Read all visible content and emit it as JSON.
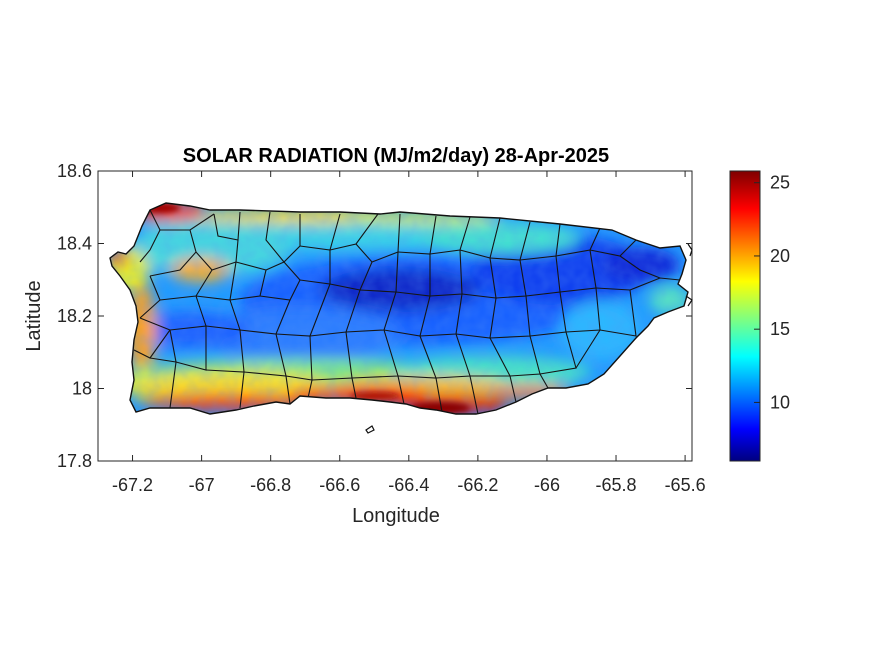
{
  "figure": {
    "title": "SOLAR RADIATION (MJ/m2/day) 28-Apr-2025",
    "xlabel": "Longitude",
    "ylabel": "Latitude"
  },
  "chart_data": {
    "type": "heatmap",
    "title": "SOLAR RADIATION (MJ/m2/day) 28-Apr-2025",
    "xlabel": "Longitude",
    "ylabel": "Latitude",
    "xlim": [
      -67.3,
      -65.58
    ],
    "ylim": [
      17.8,
      18.6
    ],
    "x_ticks": [
      -67.2,
      -67,
      -66.8,
      -66.6,
      -66.4,
      -66.2,
      -66,
      -65.8,
      -65.6
    ],
    "x_tick_labels": [
      "-67.2",
      "-67",
      "-66.8",
      "-66.6",
      "-66.4",
      "-66.2",
      "-66",
      "-65.8",
      "-65.6"
    ],
    "y_ticks": [
      17.8,
      18,
      18.2,
      18.4,
      18.6
    ],
    "y_tick_labels": [
      "17.8",
      "18",
      "18.2",
      "18.4",
      "18.6"
    ],
    "colorbar": {
      "range": [
        6,
        25.8
      ],
      "ticks": [
        10,
        15,
        20,
        25
      ],
      "tick_labels": [
        "10",
        "15",
        "20",
        "25"
      ],
      "colormap": "jet",
      "placement": "right"
    },
    "grid": false
  }
}
